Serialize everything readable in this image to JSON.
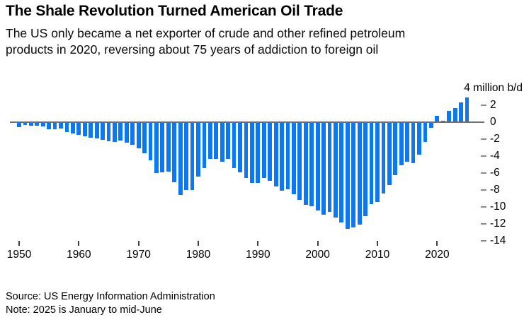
{
  "header": {
    "title": "The Shale Revolution Turned American Oil Trade",
    "subtitle_lines": [
      "The US only became a net exporter of crude and other refined petroleum",
      "products in 2020, reversing about 75 years of addiction to foreign oil"
    ]
  },
  "footer": {
    "source": "Source: US Energy Information Administration",
    "note": "Note: 2025 is January to mid-June"
  },
  "colors": {
    "bar": "#0b77f2",
    "zero_line": "#6e6e6e",
    "y_tick": "#8a8a8a",
    "x_tick": "#3f3f3f",
    "text": "#000000"
  },
  "chart_data": {
    "type": "bar",
    "title": "The Shale Revolution Turned American Oil Trade",
    "subtitle": "The US only became a net exporter of crude and other refined petroleum products in 2020, reversing about 75 years of addiction to foreign oil",
    "ylabel": "million b/d",
    "unit_label": "4 million b/d",
    "xlabel": "",
    "ylim": [
      -14,
      4
    ],
    "grid": false,
    "legend_position": "none",
    "y_ticks": [
      2,
      0,
      -2,
      -4,
      -6,
      -8,
      -10,
      -12,
      -14
    ],
    "x_ticks": [
      1950,
      1960,
      1970,
      1980,
      1990,
      2000,
      2010,
      2020
    ],
    "years": [
      1950,
      1951,
      1952,
      1953,
      1954,
      1955,
      1956,
      1957,
      1958,
      1959,
      1960,
      1961,
      1962,
      1963,
      1964,
      1965,
      1966,
      1967,
      1968,
      1969,
      1970,
      1971,
      1972,
      1973,
      1974,
      1975,
      1976,
      1977,
      1978,
      1979,
      1980,
      1981,
      1982,
      1983,
      1984,
      1985,
      1986,
      1987,
      1988,
      1989,
      1990,
      1991,
      1992,
      1993,
      1994,
      1995,
      1996,
      1997,
      1998,
      1999,
      2000,
      2001,
      2002,
      2003,
      2004,
      2005,
      2006,
      2007,
      2008,
      2009,
      2010,
      2011,
      2012,
      2013,
      2014,
      2015,
      2016,
      2017,
      2018,
      2019,
      2020,
      2021,
      2022,
      2023,
      2024,
      2025
    ],
    "values": [
      -0.55,
      -0.32,
      -0.4,
      -0.44,
      -0.51,
      -0.8,
      -0.8,
      -0.72,
      -1.15,
      -1.3,
      -1.5,
      -1.65,
      -1.85,
      -1.95,
      -2.05,
      -2.25,
      -2.3,
      -2.15,
      -2.45,
      -2.7,
      -3.1,
      -3.7,
      -4.5,
      -6.0,
      -5.9,
      -5.85,
      -7.1,
      -8.6,
      -8.0,
      -8.0,
      -6.4,
      -5.4,
      -4.35,
      -4.3,
      -4.7,
      -4.3,
      -5.45,
      -5.9,
      -6.6,
      -7.2,
      -7.15,
      -6.6,
      -6.95,
      -7.6,
      -8.05,
      -7.9,
      -8.5,
      -9.15,
      -9.75,
      -9.9,
      -10.4,
      -10.9,
      -10.55,
      -11.25,
      -11.8,
      -12.55,
      -12.4,
      -12.05,
      -11.1,
      -9.65,
      -9.45,
      -8.45,
      -7.4,
      -6.25,
      -5.05,
      -4.7,
      -4.8,
      -3.8,
      -2.35,
      -0.67,
      0.75,
      0.2,
      1.3,
      1.7,
      2.35,
      2.9
    ]
  }
}
